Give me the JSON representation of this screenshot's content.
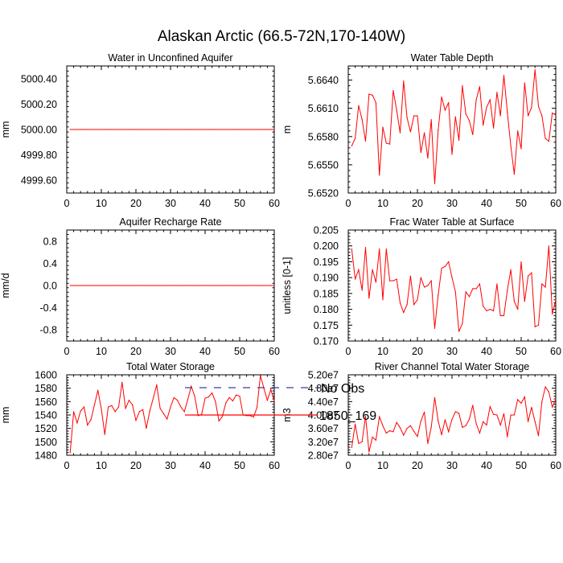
{
  "title": "Alaskan Arctic (66.5-72N,170-140W)",
  "colors": {
    "series": "#ff0000",
    "no_obs": "#3a3aa0",
    "axis": "#000000"
  },
  "legend": {
    "placement": "bottom-center",
    "items": [
      {
        "label": "No Obs",
        "style": "dashed",
        "color": "#3a3aa0"
      },
      {
        "label": "1850_169",
        "style": "solid",
        "color": "#ff0000"
      }
    ]
  },
  "chart_data": [
    {
      "type": "line",
      "title": "Water in Unconfined Aquifer",
      "ylabel": "mm",
      "xlim": [
        0,
        60
      ],
      "ylim": [
        4999.5,
        5000.5
      ],
      "xticks": [
        0,
        10,
        20,
        30,
        40,
        50,
        60
      ],
      "yticks": [
        4999.6,
        4999.8,
        5000.0,
        5000.2,
        5000.4
      ],
      "yticklabels": [
        "4999.60",
        "4999.80",
        "5000.00",
        "5000.20",
        "5000.40"
      ],
      "x_start": 1,
      "series": [
        {
          "name": "1850_169",
          "values": [
            5000,
            5000,
            5000,
            5000,
            5000,
            5000,
            5000,
            5000,
            5000,
            5000,
            5000,
            5000,
            5000,
            5000,
            5000,
            5000,
            5000,
            5000,
            5000,
            5000,
            5000,
            5000,
            5000,
            5000,
            5000,
            5000,
            5000,
            5000,
            5000,
            5000,
            5000,
            5000,
            5000,
            5000,
            5000,
            5000,
            5000,
            5000,
            5000,
            5000,
            5000,
            5000,
            5000,
            5000,
            5000,
            5000,
            5000,
            5000,
            5000,
            5000,
            5000,
            5000,
            5000,
            5000,
            5000,
            5000,
            5000,
            5000,
            5000,
            5000
          ]
        }
      ]
    },
    {
      "type": "line",
      "title": "Water Table Depth",
      "ylabel": "m",
      "xlim": [
        0,
        60
      ],
      "ylim": [
        5.652,
        5.6655
      ],
      "xticks": [
        0,
        10,
        20,
        30,
        40,
        50,
        60
      ],
      "yticks": [
        5.652,
        5.655,
        5.658,
        5.661,
        5.664
      ],
      "yticklabels": [
        "5.6520",
        "5.6550",
        "5.6580",
        "5.6610",
        "5.6640"
      ],
      "x_start": 1,
      "series": [
        {
          "name": "1850_169",
          "values": [
            5.657,
            5.6578,
            5.6613,
            5.6598,
            5.6575,
            5.6625,
            5.6624,
            5.6616,
            5.6539,
            5.659,
            5.6573,
            5.6572,
            5.6629,
            5.6608,
            5.6584,
            5.6639,
            5.66,
            5.6585,
            5.6602,
            5.6602,
            5.6563,
            5.6584,
            5.6557,
            5.6598,
            5.653,
            5.6587,
            5.6622,
            5.6608,
            5.6616,
            5.6561,
            5.6601,
            5.6576,
            5.6634,
            5.6604,
            5.6597,
            5.6582,
            5.6619,
            5.6633,
            5.6592,
            5.6611,
            5.6619,
            5.6589,
            5.6627,
            5.6602,
            5.6645,
            5.6606,
            5.657,
            5.654,
            5.6586,
            5.6567,
            5.6637,
            5.6602,
            5.6611,
            5.6651,
            5.6612,
            5.6602,
            5.6578,
            5.6575,
            5.6605,
            5.6603
          ]
        }
      ]
    },
    {
      "type": "line",
      "title": "Aquifer Recharge Rate",
      "ylabel": "mm/d",
      "xlim": [
        0,
        60
      ],
      "ylim": [
        -1,
        1
      ],
      "xticks": [
        0,
        10,
        20,
        30,
        40,
        50,
        60
      ],
      "yticks": [
        -0.8,
        -0.4,
        0.0,
        0.4,
        0.8
      ],
      "yticklabels": [
        "-0.8",
        "-0.4",
        "0.0",
        "0.4",
        "0.8"
      ],
      "x_start": 1,
      "series": [
        {
          "name": "1850_169",
          "values": [
            0,
            0,
            0,
            0,
            0,
            0,
            0,
            0,
            0,
            0,
            0,
            0,
            0,
            0,
            0,
            0,
            0,
            0,
            0,
            0,
            0,
            0,
            0,
            0,
            0,
            0,
            0,
            0,
            0,
            0,
            0,
            0,
            0,
            0,
            0,
            0,
            0,
            0,
            0,
            0,
            0,
            0,
            0,
            0,
            0,
            0,
            0,
            0,
            0,
            0,
            0,
            0,
            0,
            0,
            0,
            0,
            0,
            0,
            0,
            0
          ]
        }
      ]
    },
    {
      "type": "line",
      "title": "Frac Water Table at Surface",
      "ylabel": "unitless [0-1]",
      "xlim": [
        0,
        60
      ],
      "ylim": [
        0.17,
        0.205
      ],
      "xticks": [
        0,
        10,
        20,
        30,
        40,
        50,
        60
      ],
      "yticks": [
        0.17,
        0.175,
        0.18,
        0.185,
        0.19,
        0.195,
        0.2,
        0.205
      ],
      "yticklabels": [
        "0.170",
        "0.175",
        "0.180",
        "0.185",
        "0.190",
        "0.195",
        "0.200",
        "0.205"
      ],
      "x_start": 1,
      "series": [
        {
          "name": "1850_169",
          "values": [
            0.199,
            0.1895,
            0.1925,
            0.186,
            0.1995,
            0.1835,
            0.1925,
            0.1885,
            0.199,
            0.183,
            0.199,
            0.189,
            0.189,
            0.1895,
            0.182,
            0.179,
            0.1815,
            0.1905,
            0.1815,
            0.183,
            0.19,
            0.187,
            0.1875,
            0.189,
            0.174,
            0.1845,
            0.193,
            0.1935,
            0.195,
            0.19,
            0.1855,
            0.173,
            0.1755,
            0.1855,
            0.184,
            0.1865,
            0.1865,
            0.188,
            0.181,
            0.1795,
            0.18,
            0.1795,
            0.188,
            0.178,
            0.178,
            0.186,
            0.1925,
            0.1825,
            0.18,
            0.195,
            0.1825,
            0.1905,
            0.1915,
            0.1745,
            0.175,
            0.188,
            0.187,
            0.2,
            0.1785,
            0.183
          ]
        }
      ]
    },
    {
      "type": "line",
      "title": "Total Water Storage",
      "ylabel": "mm",
      "xlim": [
        0,
        60
      ],
      "ylim": [
        1480,
        1600
      ],
      "xticks": [
        0,
        10,
        20,
        30,
        40,
        50,
        60
      ],
      "yticks": [
        1480,
        1500,
        1520,
        1540,
        1560,
        1580,
        1600
      ],
      "yticklabels": [
        "1480",
        "1500",
        "1520",
        "1540",
        "1560",
        "1580",
        "1600"
      ],
      "x_start": 1,
      "series": [
        {
          "name": "1850_169",
          "values": [
            1484,
            1545,
            1528,
            1546,
            1552,
            1525,
            1533,
            1555,
            1577,
            1549,
            1511,
            1552,
            1554,
            1545,
            1552,
            1589,
            1550,
            1562,
            1555,
            1532,
            1545,
            1548,
            1520,
            1546,
            1565,
            1585,
            1550,
            1542,
            1534,
            1552,
            1566,
            1562,
            1552,
            1545,
            1563,
            1583,
            1568,
            1539,
            1541,
            1565,
            1567,
            1573,
            1560,
            1531,
            1538,
            1558,
            1566,
            1561,
            1570,
            1568,
            1540,
            1539,
            1539,
            1537,
            1551,
            1599,
            1580,
            1562,
            1578,
            1561
          ]
        }
      ]
    },
    {
      "type": "line",
      "title": "River Channel Total Water Storage",
      "ylabel": "m3",
      "xlim": [
        0,
        60
      ],
      "ylim": [
        28000000,
        52000000
      ],
      "xticks": [
        0,
        10,
        20,
        30,
        40,
        50,
        60
      ],
      "yticks": [
        28000000,
        32000000,
        36000000,
        40000000,
        44000000,
        48000000,
        52000000
      ],
      "yticklabels": [
        "2.80e7",
        "3.20e7",
        "3.60e7",
        "4.00e7",
        "4.40e7",
        "4.80e7",
        "5.20e7"
      ],
      "x_start": 1,
      "series": [
        {
          "name": "1850_169",
          "values": [
            30300000,
            37300000,
            31500000,
            32000000,
            39700000,
            29000000,
            33400000,
            32500000,
            39500000,
            36800000,
            34600000,
            35300000,
            35000000,
            37800000,
            36200000,
            34000000,
            36000000,
            36800000,
            35100000,
            33600000,
            38200000,
            40900000,
            31500000,
            36400000,
            45200000,
            38200000,
            34100000,
            38600000,
            35000000,
            38700000,
            41000000,
            40500000,
            36300000,
            36800000,
            38700000,
            42900000,
            37400000,
            34600000,
            38000000,
            37000000,
            42500000,
            40200000,
            40000000,
            37000000,
            40400000,
            33500000,
            40000000,
            40000000,
            44600000,
            43500000,
            45400000,
            38000000,
            42300000,
            38000000,
            33800000,
            44000000,
            48400000,
            46900000,
            42400000,
            44700000
          ]
        }
      ]
    }
  ]
}
